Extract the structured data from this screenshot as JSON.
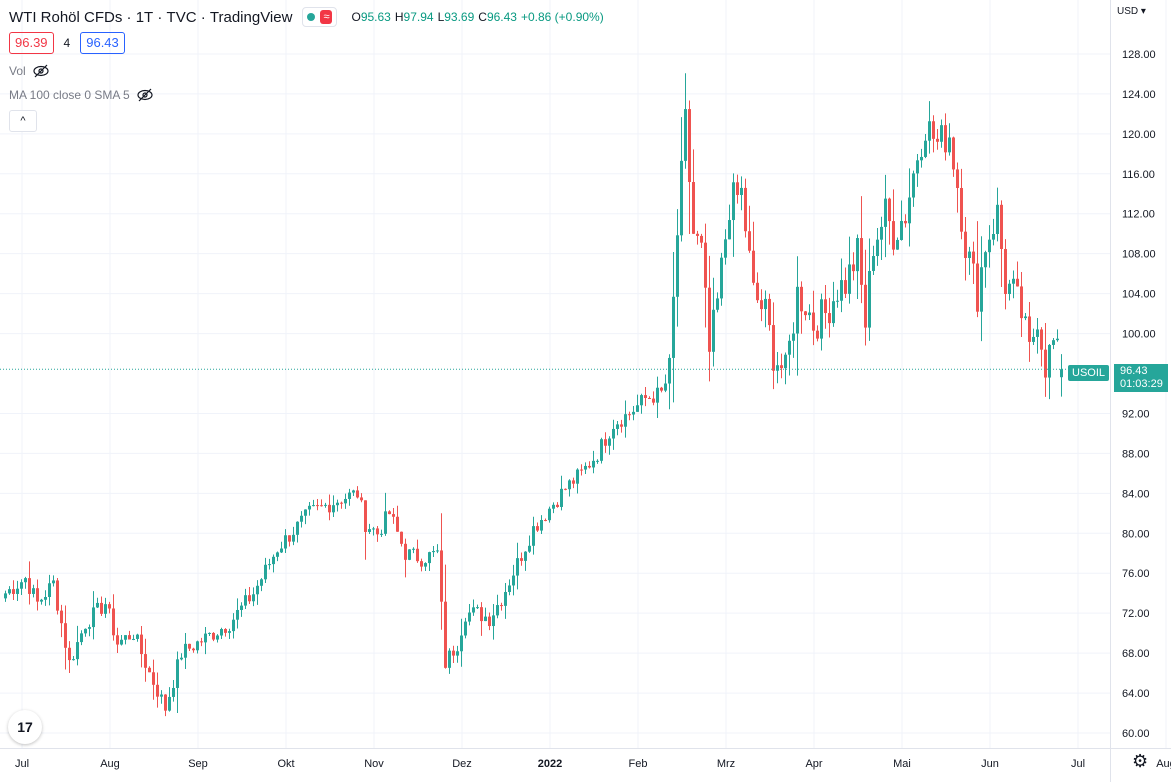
{
  "header": {
    "symbol": "WTI Rohöl CFDs",
    "interval": "1T",
    "exchange": "TVC",
    "source": "TradingView",
    "status_dot_color": "#26a69a",
    "approx_symbol": "≈",
    "o_label": "O",
    "o_value": "95.63",
    "h_label": "H",
    "h_value": "97.94",
    "l_label": "L",
    "l_value": "93.69",
    "c_label": "C",
    "c_value": "96.43",
    "change": "+0.86 (+0.90%)"
  },
  "prices": {
    "bid": "96.39",
    "spread": "4",
    "ask": "96.43"
  },
  "indicators": [
    {
      "label": "Vol",
      "icon": "eye-off-icon"
    },
    {
      "label": "MA 100 close 0 SMA 5",
      "icon": "eye-off-icon"
    }
  ],
  "collapse_icon": "^",
  "axis": {
    "currency": "USD"
  },
  "last_price": {
    "symbol_label": "USOIL",
    "value": "96.43",
    "countdown": "01:03:29",
    "color": "#26a69a"
  },
  "logo_text": "17",
  "settings_icon": "gear-icon",
  "chart_data": {
    "type": "candlestick",
    "y_axis": {
      "ticks": [
        60,
        64,
        68,
        72,
        76,
        80,
        84,
        88,
        92,
        100,
        104,
        108,
        112,
        116,
        120,
        124,
        128
      ],
      "tick_labels": [
        "60.00",
        "64.00",
        "68.00",
        "72.00",
        "76.00",
        "80.00",
        "84.00",
        "88.00",
        "92.00",
        "100.00",
        "104.00",
        "108.00",
        "112.00",
        "116.00",
        "120.00",
        "124.00",
        "128.00"
      ],
      "range": [
        59.5,
        131
      ]
    },
    "x_axis": {
      "labels": [
        "Jul",
        "Aug",
        "Sep",
        "Okt",
        "Nov",
        "Dez",
        "2022",
        "Feb",
        "Mrz",
        "Apr",
        "Mai",
        "Jun",
        "Jul",
        "Aug"
      ],
      "positions": [
        0,
        22,
        44,
        66,
        88,
        110,
        132,
        154,
        176,
        198,
        220,
        242,
        264,
        286
      ],
      "n_bars": 276
    },
    "up_color": "#26a69a",
    "down_color": "#ef5350",
    "last_price": 96.43,
    "close_anchors": [
      [
        0,
        74
      ],
      [
        5,
        75.5
      ],
      [
        8,
        73
      ],
      [
        12,
        75
      ],
      [
        16,
        67
      ],
      [
        20,
        71
      ],
      [
        25,
        73
      ],
      [
        28,
        69
      ],
      [
        32,
        70
      ],
      [
        36,
        66
      ],
      [
        40,
        62.5
      ],
      [
        44,
        68
      ],
      [
        50,
        69.5
      ],
      [
        56,
        71
      ],
      [
        62,
        74
      ],
      [
        68,
        78.5
      ],
      [
        76,
        82
      ],
      [
        84,
        83.5
      ],
      [
        88,
        84
      ],
      [
        90,
        81
      ],
      [
        93,
        80
      ],
      [
        96,
        82
      ],
      [
        100,
        78
      ],
      [
        104,
        77.5
      ],
      [
        108,
        78
      ],
      [
        110,
        67
      ],
      [
        113,
        69
      ],
      [
        115,
        72
      ],
      [
        118,
        72
      ],
      [
        121,
        71.5
      ],
      [
        124,
        73.5
      ],
      [
        128,
        77
      ],
      [
        132,
        80.5
      ],
      [
        136,
        82.5
      ],
      [
        140,
        84.5
      ],
      [
        144,
        86
      ],
      [
        148,
        88
      ],
      [
        152,
        91
      ],
      [
        156,
        92
      ],
      [
        160,
        93.5
      ],
      [
        164,
        94
      ],
      [
        166,
        96
      ],
      [
        168,
        110
      ],
      [
        170,
        121
      ],
      [
        172,
        110
      ],
      [
        174,
        108
      ],
      [
        176,
        98
      ],
      [
        178,
        103
      ],
      [
        181,
        113
      ],
      [
        184,
        114
      ],
      [
        187,
        104
      ],
      [
        190,
        102
      ],
      [
        192,
        98
      ],
      [
        195,
        96
      ],
      [
        198,
        104
      ],
      [
        200,
        103
      ],
      [
        202,
        101
      ],
      [
        205,
        102
      ],
      [
        208,
        104.5
      ],
      [
        210,
        105
      ],
      [
        213,
        108
      ],
      [
        215,
        101
      ],
      [
        217,
        109
      ],
      [
        220,
        112
      ],
      [
        222,
        110
      ],
      [
        225,
        112
      ],
      [
        228,
        118
      ],
      [
        230,
        121
      ],
      [
        233,
        119
      ],
      [
        236,
        120
      ],
      [
        238,
        115
      ],
      [
        240,
        109
      ],
      [
        243,
        104
      ],
      [
        245,
        109
      ],
      [
        248,
        112
      ],
      [
        250,
        105
      ],
      [
        252,
        104
      ],
      [
        254,
        102
      ],
      [
        256,
        98
      ],
      [
        258,
        102
      ],
      [
        260,
        97
      ],
      [
        262,
        99
      ],
      [
        264,
        96.4
      ]
    ],
    "last_bar_ohlc": {
      "open": 95.63,
      "high": 97.94,
      "low": 93.69,
      "close": 96.43
    }
  }
}
